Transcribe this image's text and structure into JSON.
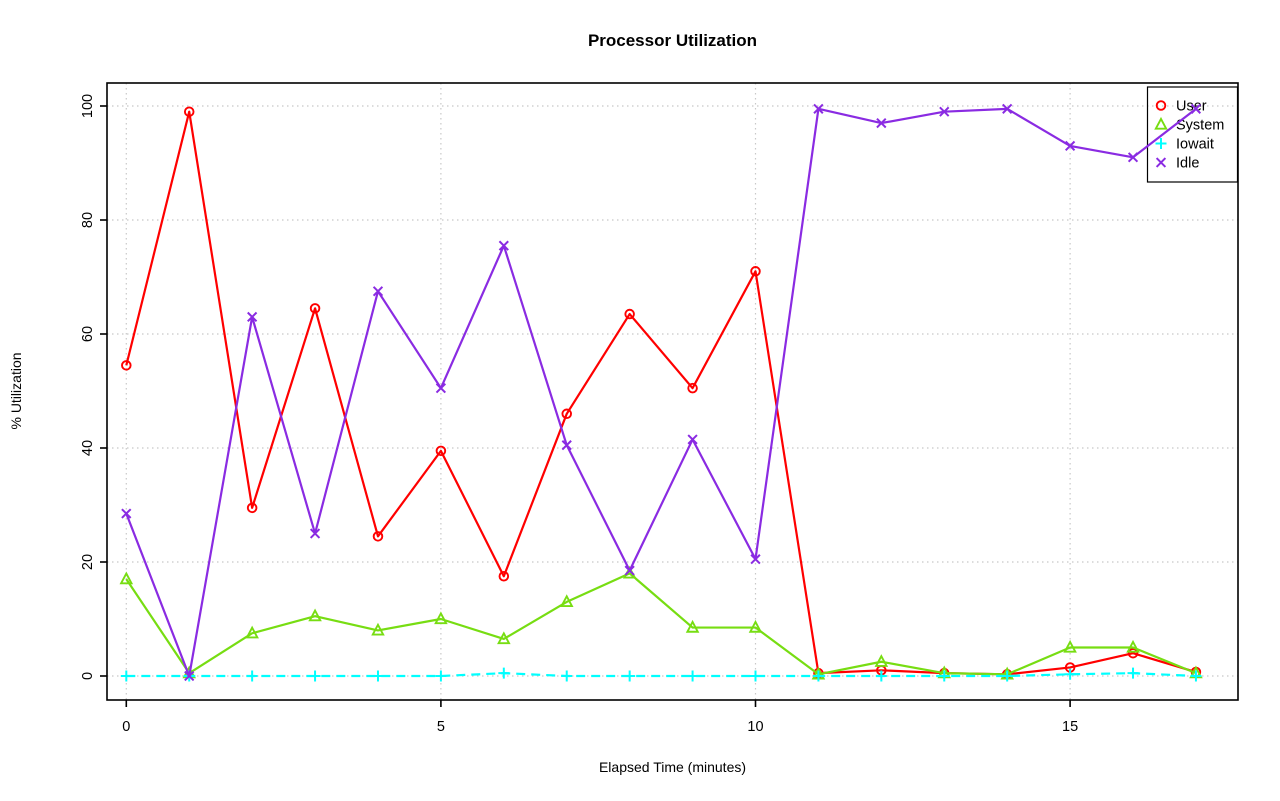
{
  "chart_data": {
    "type": "line",
    "title": "Processor Utilization",
    "xlabel": "Elapsed Time (minutes)",
    "ylabel": "% Utilization",
    "x": [
      0,
      1,
      2,
      3,
      4,
      5,
      6,
      7,
      8,
      9,
      10,
      11,
      12,
      13,
      14,
      15,
      16,
      17
    ],
    "x_ticks": [
      0,
      5,
      10,
      15
    ],
    "y_ticks": [
      0,
      20,
      40,
      60,
      80,
      100
    ],
    "xlim": [
      0,
      17
    ],
    "ylim": [
      0,
      100
    ],
    "grid": "dotted",
    "grid_color": "#C8C8C8",
    "axis_color": "#000000",
    "background_color": "#FFFFFF",
    "legend_position": "top-right",
    "series": [
      {
        "name": "User",
        "color": "#FF0000",
        "marker": "circle",
        "linestyle": "solid",
        "values": [
          54.5,
          99,
          29.5,
          64.5,
          24.5,
          39.5,
          17.5,
          46,
          63.5,
          50.5,
          71,
          0.5,
          1,
          0.5,
          0.3,
          1.5,
          4,
          0.7
        ]
      },
      {
        "name": "System",
        "color": "#77DD12",
        "marker": "triangle",
        "linestyle": "solid",
        "values": [
          17,
          0.5,
          7.5,
          10.5,
          8,
          10,
          6.5,
          13,
          18,
          8.5,
          8.5,
          0.3,
          2.5,
          0.5,
          0.3,
          5,
          5,
          0.5
        ]
      },
      {
        "name": "Iowait",
        "color": "#00FFFF",
        "marker": "plus",
        "linestyle": "dashed",
        "values": [
          0,
          0,
          0,
          0,
          0,
          0,
          0.5,
          0,
          0,
          0,
          0,
          0,
          0,
          0,
          0,
          0.3,
          0.5,
          0
        ]
      },
      {
        "name": "Idle",
        "color": "#8A2BE2",
        "marker": "x",
        "linestyle": "solid",
        "values": [
          28.5,
          0,
          63,
          25,
          67.5,
          50.5,
          75.5,
          40.5,
          18.5,
          41.5,
          20.5,
          99.5,
          97,
          99,
          99.5,
          93,
          91,
          99.5
        ]
      }
    ]
  }
}
